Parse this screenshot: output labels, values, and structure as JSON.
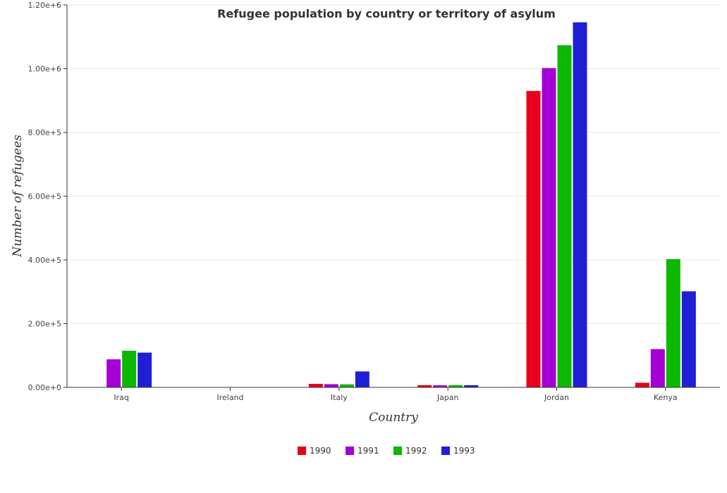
{
  "chart_data": {
    "type": "bar",
    "title": "Refugee population by country or territory of asylum",
    "xlabel": "Country",
    "ylabel": "Number of refugees",
    "categories": [
      "Iraq",
      "Ireland",
      "Italy",
      "Japan",
      "Jordan",
      "Kenya"
    ],
    "series": [
      {
        "name": "1990",
        "color": "#e8001c",
        "values": [
          900,
          300,
          11000,
          7000,
          930000,
          14500
        ]
      },
      {
        "name": "1991",
        "color": "#a400d6",
        "values": [
          88000,
          400,
          10000,
          6500,
          1002000,
          120000
        ]
      },
      {
        "name": "1992",
        "color": "#0cb800",
        "values": [
          115000,
          600,
          9500,
          7000,
          1073500,
          402500
        ]
      },
      {
        "name": "1993",
        "color": "#1f1fd6",
        "values": [
          109000,
          500,
          50000,
          6800,
          1145500,
          301500
        ]
      }
    ],
    "ylim": [
      0,
      1200000
    ],
    "yticks": [
      {
        "value": 0,
        "label": "0.00e+0"
      },
      {
        "value": 200000,
        "label": "2.00e+5"
      },
      {
        "value": 400000,
        "label": "4.00e+5"
      },
      {
        "value": 600000,
        "label": "6.00e+5"
      },
      {
        "value": 800000,
        "label": "8.00e+5"
      },
      {
        "value": 1000000,
        "label": "1.00e+6"
      },
      {
        "value": 1200000,
        "label": "1.20e+6"
      }
    ],
    "grid": true,
    "legend_position": "bottom-center"
  }
}
